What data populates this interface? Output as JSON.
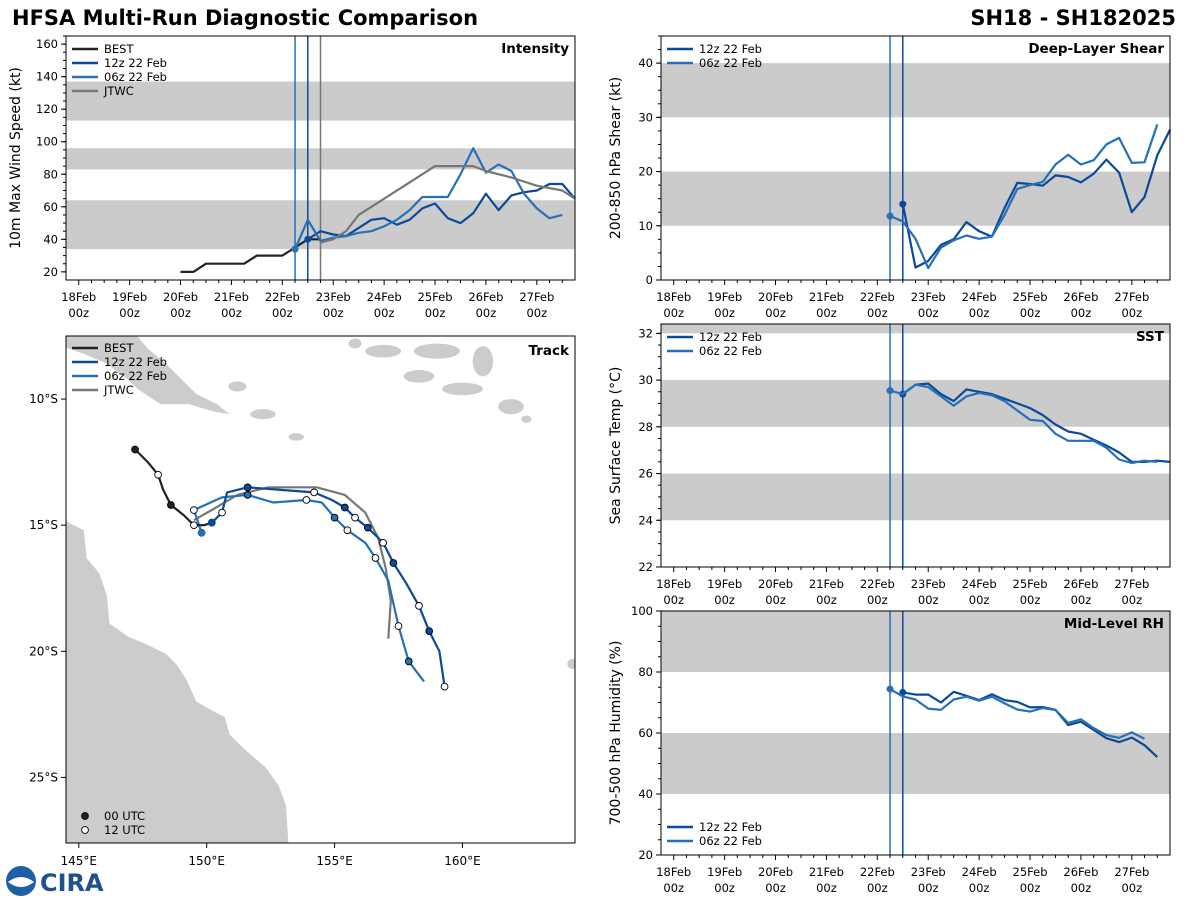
{
  "header": {
    "title": "HFSA Multi-Run Diagnostic Comparison",
    "storm_id": "SH18 - SH182025"
  },
  "colors": {
    "best": "#222222",
    "run_12z": "#0b4a9a",
    "run_06z": "#2570b8",
    "jtwc": "#777777",
    "band": "#cbcbcb",
    "land": "#cccccc"
  },
  "logo": {
    "text": "CIRA",
    "icon": "noaa-icon"
  },
  "time_axis": {
    "ticks": [
      "18Feb|00z",
      "19Feb|00z",
      "20Feb|00z",
      "21Feb|00z",
      "22Feb|00z",
      "23Feb|00z",
      "24Feb|00z",
      "25Feb|00z",
      "26Feb|00z",
      "27Feb|00z"
    ],
    "range": [
      -0.25,
      9.75
    ],
    "init_lines": [
      4.25,
      4.5
    ]
  },
  "chart_data": [
    {
      "id": "intensity",
      "type": "line",
      "title": "Intensity",
      "ylabel": "10m Max Wind Speed (kt)",
      "ylim": [
        15,
        165
      ],
      "yticks": [
        20,
        40,
        60,
        80,
        100,
        120,
        140,
        160
      ],
      "bands": [
        [
          34,
          64
        ],
        [
          83,
          96
        ],
        [
          113,
          137
        ]
      ],
      "extra_vline": 4.75,
      "legend": [
        "BEST",
        "12z 22 Feb",
        "06z 22 Feb",
        "JTWC"
      ],
      "series": [
        {
          "name": "BEST",
          "color_key": "best",
          "x": [
            2,
            2.25,
            2.5,
            2.75,
            3,
            3.25,
            3.5,
            3.75,
            4,
            4.25,
            4.5,
            4.75
          ],
          "values": [
            20,
            20,
            25,
            25,
            25,
            25,
            30,
            30,
            30,
            35,
            40,
            40
          ]
        },
        {
          "name": "12z 22 Feb",
          "color_key": "run_12z",
          "x": [
            4.5,
            4.75,
            5,
            5.25,
            5.5,
            5.75,
            6,
            6.25,
            6.5,
            6.75,
            7,
            7.25,
            7.5,
            7.75,
            8,
            8.25,
            8.5,
            8.75,
            9,
            9.25,
            9.5,
            9.75
          ],
          "values": [
            40,
            45,
            43,
            42,
            47,
            52,
            53,
            49,
            52,
            59,
            62,
            53,
            50,
            56,
            68,
            58,
            67,
            69,
            70,
            74,
            74,
            65
          ]
        },
        {
          "name": "06z 22 Feb",
          "color_key": "run_06z",
          "x": [
            4.25,
            4.5,
            4.75,
            5,
            5.25,
            5.5,
            5.75,
            6,
            6.25,
            6.5,
            6.75,
            7,
            7.25,
            7.5,
            7.75,
            8,
            8.25,
            8.5,
            8.75,
            9,
            9.25,
            9.5,
            9.75
          ],
          "values": [
            34,
            52,
            39,
            41,
            42,
            44,
            45,
            48,
            52,
            58,
            66,
            66,
            66,
            80,
            96,
            81,
            86,
            82,
            68,
            59,
            53,
            55,
            null
          ]
        },
        {
          "name": "JTWC",
          "color_key": "jtwc",
          "x": [
            4.75,
            5,
            5.25,
            5.5,
            6,
            6.5,
            7,
            7.5,
            7.75,
            8,
            8.5,
            9,
            9.5,
            9.75
          ],
          "values": [
            38,
            40,
            45,
            55,
            65,
            75,
            85,
            85,
            85,
            82,
            78,
            73,
            70,
            65
          ]
        }
      ]
    },
    {
      "id": "shear",
      "type": "line",
      "title": "Deep-Layer Shear",
      "ylabel": "200-850 hPa Shear (kt)",
      "ylim": [
        0,
        45
      ],
      "yticks": [
        0,
        10,
        20,
        30,
        40
      ],
      "bands": [
        [
          10,
          20
        ],
        [
          30,
          40
        ]
      ],
      "legend": [
        "12z 22 Feb",
        "06z 22 Feb"
      ],
      "series": [
        {
          "name": "12z 22 Feb",
          "color_key": "run_12z",
          "x": [
            4.5,
            4.75,
            5,
            5.25,
            5.5,
            5.75,
            6,
            6.25,
            6.5,
            6.75,
            7,
            7.25,
            7.5,
            7.75,
            8,
            8.25,
            8.5,
            8.75,
            9,
            9.25,
            9.5,
            9.75
          ],
          "values": [
            14,
            2.3,
            3.5,
            6.5,
            7.5,
            10.7,
            9,
            8,
            13.3,
            17.9,
            17.7,
            17.4,
            19.3,
            19.0,
            18,
            19.6,
            22.2,
            19.8,
            12.5,
            15.3,
            23,
            27.7
          ]
        },
        {
          "name": "06z 22 Feb",
          "color_key": "run_06z",
          "x": [
            4.25,
            4.5,
            4.75,
            5,
            5.25,
            5.5,
            5.75,
            6,
            6.25,
            6.5,
            6.75,
            7,
            7.25,
            7.5,
            7.75,
            8,
            8.25,
            8.5,
            8.75,
            9,
            9.25,
            9.5
          ],
          "values": [
            11.8,
            10.8,
            7.6,
            2.2,
            6,
            7.3,
            8.2,
            7.6,
            8,
            12,
            16.8,
            17.5,
            18.1,
            21.3,
            23.1,
            21.3,
            22.1,
            25,
            26.2,
            21.6,
            21.7,
            28.7
          ]
        }
      ]
    },
    {
      "id": "sst",
      "type": "line",
      "title": "SST",
      "ylabel": "Sea Surface Temp (°C)",
      "ylim": [
        22,
        32.4
      ],
      "yticks": [
        22,
        24,
        26,
        28,
        30,
        32
      ],
      "bands": [
        [
          24,
          26
        ],
        [
          28,
          30
        ],
        [
          32,
          32.4
        ]
      ],
      "legend": [
        "12z 22 Feb",
        "06z 22 Feb"
      ],
      "series": [
        {
          "name": "12z 22 Feb",
          "color_key": "run_12z",
          "x": [
            4.5,
            4.75,
            5,
            5.25,
            5.5,
            5.75,
            6,
            6.25,
            6.5,
            6.75,
            7,
            7.25,
            7.5,
            7.75,
            8,
            8.25,
            8.5,
            8.75,
            9,
            9.25,
            9.5,
            9.75
          ],
          "values": [
            29.4,
            29.8,
            29.85,
            29.4,
            29.1,
            29.6,
            29.5,
            29.4,
            29.2,
            29.0,
            28.8,
            28.5,
            28.1,
            27.8,
            27.7,
            27.45,
            27.2,
            26.9,
            26.5,
            26.5,
            26.55,
            26.5
          ]
        },
        {
          "name": "06z 22 Feb",
          "color_key": "run_06z",
          "x": [
            4.25,
            4.5,
            4.75,
            5,
            5.25,
            5.5,
            5.75,
            6,
            6.25,
            6.5,
            6.75,
            7,
            7.25,
            7.5,
            7.75,
            8,
            8.25,
            8.5,
            8.75,
            9,
            9.25,
            9.5
          ],
          "values": [
            29.55,
            29.4,
            29.8,
            29.7,
            29.3,
            28.9,
            29.3,
            29.45,
            29.35,
            29.1,
            28.7,
            28.3,
            28.25,
            27.7,
            27.4,
            27.4,
            27.4,
            27.1,
            26.6,
            26.45,
            26.55,
            26.5
          ]
        }
      ]
    },
    {
      "id": "rh",
      "type": "line",
      "title": "Mid-Level RH",
      "ylabel": "700-500 hPa Humidity (%)",
      "ylim": [
        20,
        100
      ],
      "yticks": [
        20,
        40,
        60,
        80,
        100
      ],
      "bands": [
        [
          40,
          60
        ],
        [
          80,
          100
        ]
      ],
      "legend": [
        "12z 22 Feb",
        "06z 22 Feb"
      ],
      "series": [
        {
          "name": "12z 22 Feb",
          "color_key": "run_12z",
          "x": [
            4.5,
            4.75,
            5,
            5.25,
            5.5,
            5.75,
            6,
            6.25,
            6.5,
            6.75,
            7,
            7.25,
            7.5,
            7.75,
            8,
            8.25,
            8.5,
            8.75,
            9,
            9.25,
            9.5,
            9.75
          ],
          "values": [
            73.3,
            72.6,
            72.6,
            70,
            73.5,
            72.2,
            70.8,
            72.7,
            70.8,
            70.2,
            68.4,
            68.5,
            67.6,
            62.6,
            63.7,
            61,
            58.3,
            57,
            58.5,
            56,
            52.1,
            null
          ]
        },
        {
          "name": "06z 22 Feb",
          "color_key": "run_06z",
          "x": [
            4.25,
            4.5,
            4.75,
            5,
            5.25,
            5.5,
            5.75,
            6,
            6.25,
            6.5,
            6.75,
            7,
            7.25,
            7.5,
            7.75,
            8,
            8.25,
            8.5,
            8.75,
            9,
            9.25,
            9.5
          ],
          "values": [
            74.4,
            72,
            71,
            68,
            67.6,
            71,
            71.9,
            70.6,
            71.9,
            69.7,
            67.7,
            67,
            68.2,
            67.5,
            63.3,
            64.5,
            61.6,
            59.3,
            58.4,
            60.2,
            58.1,
            null
          ]
        }
      ]
    },
    {
      "id": "track",
      "type": "scatter",
      "title": "Track",
      "xlabel_ticks": [
        "145°E",
        "150°E",
        "155°E",
        "160°E"
      ],
      "ylabel_ticks": [
        "10°S",
        "15°S",
        "20°S",
        "25°S"
      ],
      "lon_range": [
        144.5,
        164.4
      ],
      "lat_range": [
        -27.6,
        -7.5
      ],
      "legend": [
        "BEST",
        "12z 22 Feb",
        "06z 22 Feb",
        "JTWC"
      ],
      "marker_legend": [
        "00 UTC",
        "12 UTC"
      ],
      "tracks": [
        {
          "name": "BEST",
          "color_key": "best",
          "lon": [
            147.2,
            147.7,
            148.1,
            148.3,
            148.6,
            149.1,
            149.5,
            149.9,
            150.2
          ],
          "lat": [
            -12.0,
            -12.5,
            -13.0,
            -13.6,
            -14.2,
            -14.6,
            -15.0,
            -15.0,
            -14.9
          ],
          "mark": [
            "00",
            "",
            "12",
            "",
            "00",
            "",
            "12",
            "",
            ""
          ]
        },
        {
          "name": "12z 22 Feb",
          "color_key": "run_12z",
          "lon": [
            150.2,
            150.6,
            150.8,
            151.6,
            152.9,
            154.2,
            154.9,
            155.4,
            155.8,
            156.3,
            156.9,
            157.3,
            157.8,
            158.3,
            158.7,
            159.1,
            159.3
          ],
          "lat": [
            -14.9,
            -14.5,
            -13.7,
            -13.5,
            -13.6,
            -13.7,
            -14.0,
            -14.3,
            -14.7,
            -15.1,
            -15.7,
            -16.5,
            -17.3,
            -18.2,
            -19.2,
            -20.0,
            -21.4
          ],
          "mark": [
            "00",
            "12",
            "",
            "00",
            "",
            "12",
            "",
            "00",
            "12",
            "00",
            "12",
            "00",
            "",
            "12",
            "00",
            "",
            "12"
          ]
        },
        {
          "name": "06z 22 Feb",
          "color_key": "run_06z",
          "lon": [
            149.8,
            149.5,
            150.6,
            151.6,
            152.6,
            153.9,
            154.5,
            155.0,
            155.5,
            156.2,
            156.6,
            157.1,
            157.5,
            157.9,
            158.5
          ],
          "lat": [
            -15.3,
            -14.4,
            -13.9,
            -13.8,
            -14.1,
            -14.0,
            -14.1,
            -14.7,
            -15.2,
            -15.7,
            -16.3,
            -17.2,
            -19.0,
            -20.4,
            -21.2
          ],
          "mark": [
            "00",
            "12",
            "",
            "00",
            "",
            "12",
            "",
            "00",
            "12",
            "",
            "12",
            "",
            "12",
            "00",
            ""
          ]
        },
        {
          "name": "JTWC",
          "color_key": "jtwc",
          "lon": [
            149.5,
            150.2,
            151.2,
            152.4,
            154.3,
            155.4,
            156.2,
            156.7,
            157.0,
            157.2,
            157.1
          ],
          "lat": [
            -14.8,
            -14.4,
            -13.8,
            -13.5,
            -13.5,
            -13.8,
            -14.5,
            -15.5,
            -16.7,
            -18.0,
            -19.5
          ],
          "mark": [
            "",
            "",
            "",
            "",
            "",
            "",
            "",
            "",
            "",
            "",
            ""
          ]
        }
      ]
    }
  ]
}
